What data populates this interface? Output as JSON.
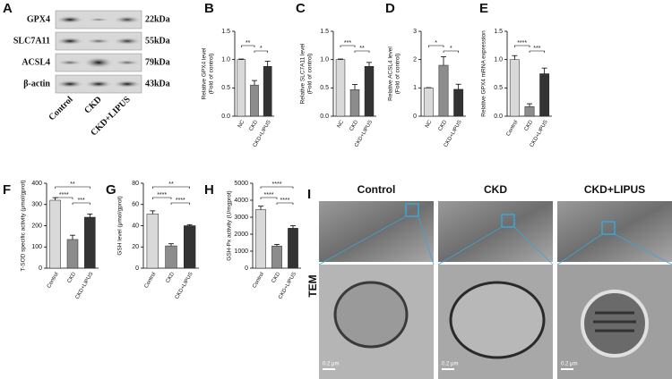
{
  "chart_data": [
    {
      "type": "bar",
      "panel": "B",
      "y_label": [
        "Relative GPX4 level",
        "(Fold of control)"
      ],
      "categories": [
        "NC",
        "CKD",
        "CKD+LIPUS"
      ],
      "values": [
        1.0,
        0.55,
        0.88
      ],
      "errors": [
        0.01,
        0.08,
        0.09
      ],
      "colors": [
        "#d9d9d9",
        "#8c8c8c",
        "#333333"
      ],
      "ylim": [
        0,
        1.5
      ],
      "yticks": [
        {
          "value": 0,
          "label": "0.0"
        },
        {
          "value": 0.5,
          "label": "0.5"
        },
        {
          "value": 1,
          "label": "1.0"
        },
        {
          "value": 1.5,
          "label": "1.5"
        }
      ],
      "comparisons": [
        {
          "label": "**",
          "pair": [
            0,
            1
          ]
        },
        {
          "label": "*",
          "pair": [
            1,
            2
          ]
        }
      ]
    },
    {
      "type": "bar",
      "panel": "C",
      "y_label": [
        "Relative SLC7A11 level",
        "(Fold of control)"
      ],
      "categories": [
        "NC",
        "CKD",
        "CKD+LIPUS"
      ],
      "values": [
        1.0,
        0.47,
        0.88
      ],
      "errors": [
        0.01,
        0.09,
        0.07
      ],
      "colors": [
        "#d9d9d9",
        "#8c8c8c",
        "#333333"
      ],
      "ylim": [
        0,
        1.5
      ],
      "yticks": [
        {
          "value": 0,
          "label": "0.0"
        },
        {
          "value": 0.5,
          "label": "0.5"
        },
        {
          "value": 1,
          "label": "1.0"
        },
        {
          "value": 1.5,
          "label": "1.5"
        }
      ],
      "comparisons": [
        {
          "label": "***",
          "pair": [
            0,
            1
          ]
        },
        {
          "label": "**",
          "pair": [
            1,
            2
          ]
        }
      ]
    },
    {
      "type": "bar",
      "panel": "D",
      "y_label": [
        "Relative ACSL4 level",
        "(Fold of control)"
      ],
      "categories": [
        "NC",
        "CKD",
        "CKD+LIPUS"
      ],
      "values": [
        1.0,
        1.8,
        0.95
      ],
      "errors": [
        0.01,
        0.3,
        0.18
      ],
      "colors": [
        "#d9d9d9",
        "#8c8c8c",
        "#333333"
      ],
      "ylim": [
        0,
        3
      ],
      "yticks": [
        0,
        1,
        2,
        3
      ],
      "comparisons": [
        {
          "label": "*",
          "pair": [
            0,
            1
          ]
        },
        {
          "label": "*",
          "pair": [
            1,
            2
          ]
        }
      ]
    },
    {
      "type": "bar",
      "panel": "E",
      "y_label": [
        "Relative GPX4 mRNA expression"
      ],
      "categories": [
        "Control",
        "CKD",
        "CKD+LIPUS"
      ],
      "values": [
        1.0,
        0.17,
        0.75
      ],
      "errors": [
        0.07,
        0.05,
        0.1
      ],
      "colors": [
        "#d9d9d9",
        "#8c8c8c",
        "#333333"
      ],
      "ylim": [
        0,
        1.5
      ],
      "yticks": [
        {
          "value": 0,
          "label": "0.0"
        },
        {
          "value": 0.5,
          "label": "0.5"
        },
        {
          "value": 1,
          "label": "1.0"
        },
        {
          "value": 1.5,
          "label": "1.5"
        }
      ],
      "comparisons": [
        {
          "label": "****",
          "pair": [
            0,
            1
          ]
        },
        {
          "label": "***",
          "pair": [
            1,
            2
          ]
        }
      ]
    },
    {
      "type": "bar",
      "panel": "F",
      "y_label": [
        "T-SOD specific activity (μmol/gprot)"
      ],
      "categories": [
        "Control",
        "CKD",
        "CKD+LIPUS"
      ],
      "values": [
        320,
        135,
        240
      ],
      "errors": [
        12,
        20,
        15
      ],
      "colors": [
        "#d9d9d9",
        "#8c8c8c",
        "#333333"
      ],
      "ylim": [
        0,
        400
      ],
      "yticks": [
        0,
        100,
        200,
        300,
        400
      ],
      "comparisons": [
        {
          "label": "****",
          "pair": [
            0,
            1
          ]
        },
        {
          "label": "**",
          "pair": [
            0,
            2
          ]
        },
        {
          "label": "***",
          "pair": [
            1,
            2
          ]
        }
      ]
    },
    {
      "type": "bar",
      "panel": "G",
      "y_label": [
        "GSH level (μmol/gprot)"
      ],
      "categories": [
        "Control",
        "CKD",
        "CKD+LIPUS"
      ],
      "values": [
        51,
        21,
        40
      ],
      "errors": [
        3,
        2,
        1
      ],
      "colors": [
        "#d9d9d9",
        "#8c8c8c",
        "#333333"
      ],
      "ylim": [
        0,
        80
      ],
      "yticks": [
        0,
        20,
        40,
        60,
        80
      ],
      "comparisons": [
        {
          "label": "****",
          "pair": [
            0,
            1
          ]
        },
        {
          "label": "**",
          "pair": [
            0,
            2
          ]
        },
        {
          "label": "****",
          "pair": [
            1,
            2
          ]
        }
      ]
    },
    {
      "type": "bar",
      "panel": "H",
      "y_label": [
        "GSH-Px activity (U/mgprot)"
      ],
      "categories": [
        "Control",
        "CKD",
        "CKD+LIPUS"
      ],
      "values": [
        3450,
        1300,
        2350
      ],
      "errors": [
        200,
        100,
        150
      ],
      "colors": [
        "#d9d9d9",
        "#8c8c8c",
        "#333333"
      ],
      "ylim": [
        0,
        5000
      ],
      "yticks": [
        0,
        1000,
        2000,
        3000,
        4000,
        5000
      ],
      "comparisons": [
        {
          "label": "****",
          "pair": [
            0,
            1
          ]
        },
        {
          "label": "****",
          "pair": [
            0,
            2
          ]
        },
        {
          "label": "****",
          "pair": [
            1,
            2
          ]
        }
      ]
    }
  ],
  "blot": {
    "panel": "A",
    "rows": [
      {
        "protein": "GPX4",
        "size": "22kDa"
      },
      {
        "protein": "SLC7A11",
        "size": "55kDa"
      },
      {
        "protein": "ACSL4",
        "size": "79kDa"
      },
      {
        "protein": "β-actin",
        "size": "43kDa"
      }
    ],
    "lanes": [
      "Control",
      "CKD",
      "CKD+LIPUS"
    ]
  },
  "tem": {
    "panel": "I",
    "method": "TEM",
    "groups": [
      "Control",
      "CKD",
      "CKD+LIPUS"
    ],
    "scale": "0.2 μm"
  }
}
